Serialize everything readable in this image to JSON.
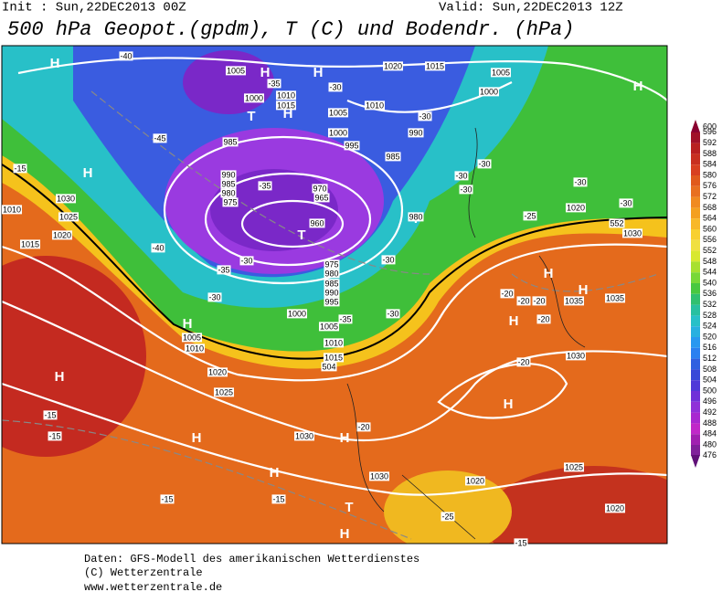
{
  "header": {
    "init": "Init : Sun,22DEC2013 00Z",
    "valid": "Valid: Sun,22DEC2013 12Z",
    "title": "500 hPa Geopot.(gpdm), T (C) und Bodendr. (hPa)"
  },
  "colorbar": {
    "labels": [
      600,
      596,
      592,
      588,
      584,
      580,
      576,
      572,
      568,
      564,
      560,
      556,
      552,
      548,
      544,
      540,
      536,
      532,
      528,
      524,
      520,
      516,
      512,
      508,
      504,
      500,
      496,
      492,
      488,
      484,
      480,
      476
    ]
  },
  "map": {
    "labels": [
      "H",
      "H",
      "H",
      "H",
      "T",
      "H",
      "H",
      "T",
      "T",
      "H",
      "H",
      "H",
      "H",
      "H",
      "H",
      "H",
      "H",
      "H",
      "T",
      "H",
      "1005",
      "1020",
      "1015",
      "1005",
      "1000",
      "1000",
      "1010",
      "1015",
      "1010",
      "1005",
      "990",
      "1000",
      "995",
      "985",
      "985",
      "990",
      "985",
      "980",
      "975",
      "970",
      "965",
      "960",
      "980",
      "975",
      "980",
      "985",
      "990",
      "995",
      "1000",
      "1005",
      "1010",
      "1015",
      "1030",
      "1025",
      "1020",
      "1015",
      "1010",
      "1005",
      "1010",
      "1020",
      "1025",
      "1030",
      "1030",
      "1020",
      "1025",
      "1020",
      "1030",
      "1035",
      "1035",
      "1030",
      "1020",
      "-40",
      "-35",
      "-30",
      "-45",
      "-15",
      "-35",
      "-40",
      "-35",
      "-30",
      "-30",
      "-35",
      "-30",
      "-30",
      "-30",
      "-30",
      "-30",
      "-30",
      "-30",
      "-25",
      "-30",
      "-20",
      "-20",
      "-20",
      "-20",
      "-20",
      "-20",
      "-15",
      "-15",
      "-15",
      "-15",
      "-25",
      "-15",
      "552",
      "504"
    ]
  },
  "footer": {
    "lines": [
      "Daten: GFS-Modell des amerikanischen Wetterdienstes",
      "(C) Wetterzentrale",
      "www.wetterzentrale.de"
    ]
  }
}
